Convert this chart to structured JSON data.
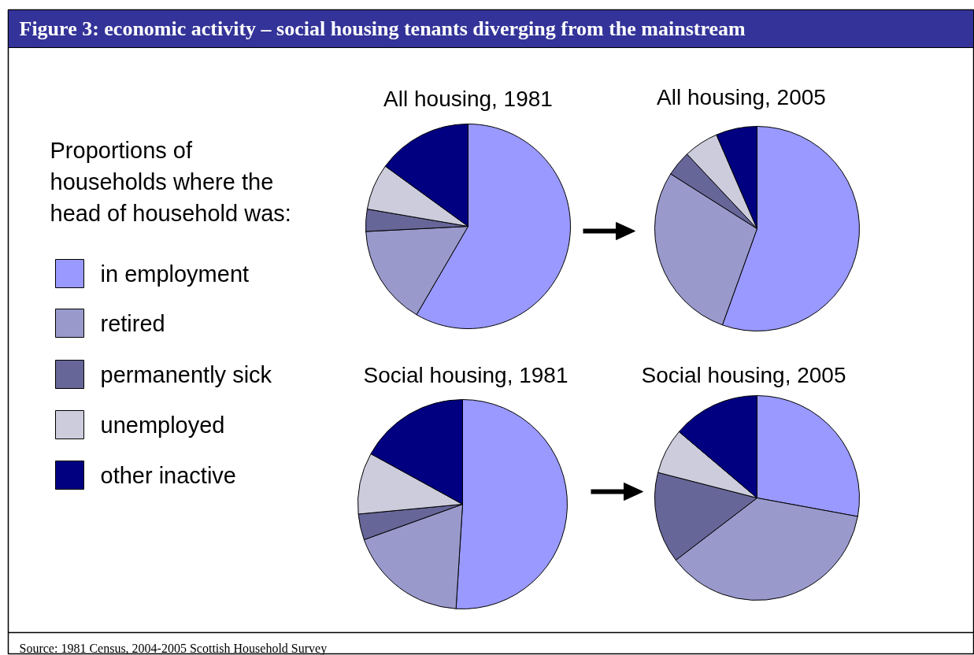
{
  "chart_data": [
    {
      "type": "pie",
      "title": "All housing, 1981",
      "categories": [
        "in employment",
        "retired",
        "permanently sick",
        "unemployed",
        "other inactive"
      ],
      "values": [
        58.4,
        15.8,
        3.5,
        7.3,
        15
      ],
      "colors": [
        "#9999ff",
        "#9999cc",
        "#666699",
        "#ccccdd",
        "#000080"
      ],
      "legend": "left",
      "legend_title": "Proportions of households where the head of household was:",
      "annotations": [
        "Figure 3: economic activity – social housing tenants diverging from the mainstream",
        "Source: 1981 Census, 2004-2005 Scottish Household Survey"
      ]
    },
    {
      "type": "pie",
      "title": "All housing, 2005",
      "categories": [
        null,
        null,
        null,
        null,
        null
      ],
      "values": [
        55.5,
        28.5,
        4,
        5.5,
        6.5
      ],
      "colors": [
        "#9999ff",
        "#9999cc",
        "#666699",
        "#ccccdd",
        "#000080"
      ]
    },
    {
      "type": "pie",
      "title": "Social housing, 1981",
      "categories": [
        null,
        null,
        null,
        null,
        null
      ],
      "values": [
        51,
        18.5,
        4,
        9.5,
        17
      ],
      "colors": [
        "#9999ff",
        "#9999cc",
        "#666699",
        "#ccccdd",
        "#000080"
      ]
    },
    {
      "type": "pie",
      "title": "Social housing, 2005",
      "categories": [
        null,
        null,
        null,
        null,
        null
      ],
      "values": [
        27.9,
        36.7,
        14.4,
        7.2,
        13.8
      ],
      "colors": [
        "#9999ff",
        "#9999cc",
        "#666699",
        "#ccccdd",
        "#000080"
      ]
    }
  ]
}
